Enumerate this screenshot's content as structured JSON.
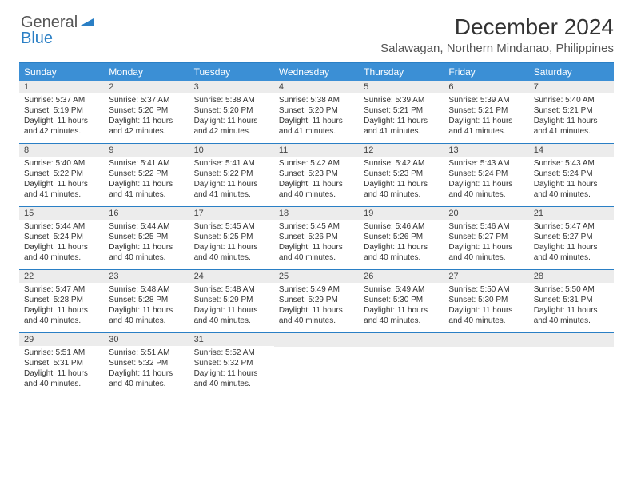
{
  "colors": {
    "header_bg": "#3b8fd5",
    "border": "#2a7fc5",
    "daynum_bg": "#ececec",
    "text": "#333333",
    "logo_gray": "#555555",
    "logo_blue": "#2a7fc5"
  },
  "logo": {
    "part1": "General",
    "part2": "Blue"
  },
  "title": "December 2024",
  "location": "Salawagan, Northern Mindanao, Philippines",
  "day_names": [
    "Sunday",
    "Monday",
    "Tuesday",
    "Wednesday",
    "Thursday",
    "Friday",
    "Saturday"
  ],
  "weeks": [
    [
      {
        "n": "1",
        "sr": "5:37 AM",
        "ss": "5:19 PM",
        "dl": "11 hours and 42 minutes."
      },
      {
        "n": "2",
        "sr": "5:37 AM",
        "ss": "5:20 PM",
        "dl": "11 hours and 42 minutes."
      },
      {
        "n": "3",
        "sr": "5:38 AM",
        "ss": "5:20 PM",
        "dl": "11 hours and 42 minutes."
      },
      {
        "n": "4",
        "sr": "5:38 AM",
        "ss": "5:20 PM",
        "dl": "11 hours and 41 minutes."
      },
      {
        "n": "5",
        "sr": "5:39 AM",
        "ss": "5:21 PM",
        "dl": "11 hours and 41 minutes."
      },
      {
        "n": "6",
        "sr": "5:39 AM",
        "ss": "5:21 PM",
        "dl": "11 hours and 41 minutes."
      },
      {
        "n": "7",
        "sr": "5:40 AM",
        "ss": "5:21 PM",
        "dl": "11 hours and 41 minutes."
      }
    ],
    [
      {
        "n": "8",
        "sr": "5:40 AM",
        "ss": "5:22 PM",
        "dl": "11 hours and 41 minutes."
      },
      {
        "n": "9",
        "sr": "5:41 AM",
        "ss": "5:22 PM",
        "dl": "11 hours and 41 minutes."
      },
      {
        "n": "10",
        "sr": "5:41 AM",
        "ss": "5:22 PM",
        "dl": "11 hours and 41 minutes."
      },
      {
        "n": "11",
        "sr": "5:42 AM",
        "ss": "5:23 PM",
        "dl": "11 hours and 40 minutes."
      },
      {
        "n": "12",
        "sr": "5:42 AM",
        "ss": "5:23 PM",
        "dl": "11 hours and 40 minutes."
      },
      {
        "n": "13",
        "sr": "5:43 AM",
        "ss": "5:24 PM",
        "dl": "11 hours and 40 minutes."
      },
      {
        "n": "14",
        "sr": "5:43 AM",
        "ss": "5:24 PM",
        "dl": "11 hours and 40 minutes."
      }
    ],
    [
      {
        "n": "15",
        "sr": "5:44 AM",
        "ss": "5:24 PM",
        "dl": "11 hours and 40 minutes."
      },
      {
        "n": "16",
        "sr": "5:44 AM",
        "ss": "5:25 PM",
        "dl": "11 hours and 40 minutes."
      },
      {
        "n": "17",
        "sr": "5:45 AM",
        "ss": "5:25 PM",
        "dl": "11 hours and 40 minutes."
      },
      {
        "n": "18",
        "sr": "5:45 AM",
        "ss": "5:26 PM",
        "dl": "11 hours and 40 minutes."
      },
      {
        "n": "19",
        "sr": "5:46 AM",
        "ss": "5:26 PM",
        "dl": "11 hours and 40 minutes."
      },
      {
        "n": "20",
        "sr": "5:46 AM",
        "ss": "5:27 PM",
        "dl": "11 hours and 40 minutes."
      },
      {
        "n": "21",
        "sr": "5:47 AM",
        "ss": "5:27 PM",
        "dl": "11 hours and 40 minutes."
      }
    ],
    [
      {
        "n": "22",
        "sr": "5:47 AM",
        "ss": "5:28 PM",
        "dl": "11 hours and 40 minutes."
      },
      {
        "n": "23",
        "sr": "5:48 AM",
        "ss": "5:28 PM",
        "dl": "11 hours and 40 minutes."
      },
      {
        "n": "24",
        "sr": "5:48 AM",
        "ss": "5:29 PM",
        "dl": "11 hours and 40 minutes."
      },
      {
        "n": "25",
        "sr": "5:49 AM",
        "ss": "5:29 PM",
        "dl": "11 hours and 40 minutes."
      },
      {
        "n": "26",
        "sr": "5:49 AM",
        "ss": "5:30 PM",
        "dl": "11 hours and 40 minutes."
      },
      {
        "n": "27",
        "sr": "5:50 AM",
        "ss": "5:30 PM",
        "dl": "11 hours and 40 minutes."
      },
      {
        "n": "28",
        "sr": "5:50 AM",
        "ss": "5:31 PM",
        "dl": "11 hours and 40 minutes."
      }
    ],
    [
      {
        "n": "29",
        "sr": "5:51 AM",
        "ss": "5:31 PM",
        "dl": "11 hours and 40 minutes."
      },
      {
        "n": "30",
        "sr": "5:51 AM",
        "ss": "5:32 PM",
        "dl": "11 hours and 40 minutes."
      },
      {
        "n": "31",
        "sr": "5:52 AM",
        "ss": "5:32 PM",
        "dl": "11 hours and 40 minutes."
      },
      null,
      null,
      null,
      null
    ]
  ],
  "labels": {
    "sunrise": "Sunrise:",
    "sunset": "Sunset:",
    "daylight": "Daylight:"
  }
}
